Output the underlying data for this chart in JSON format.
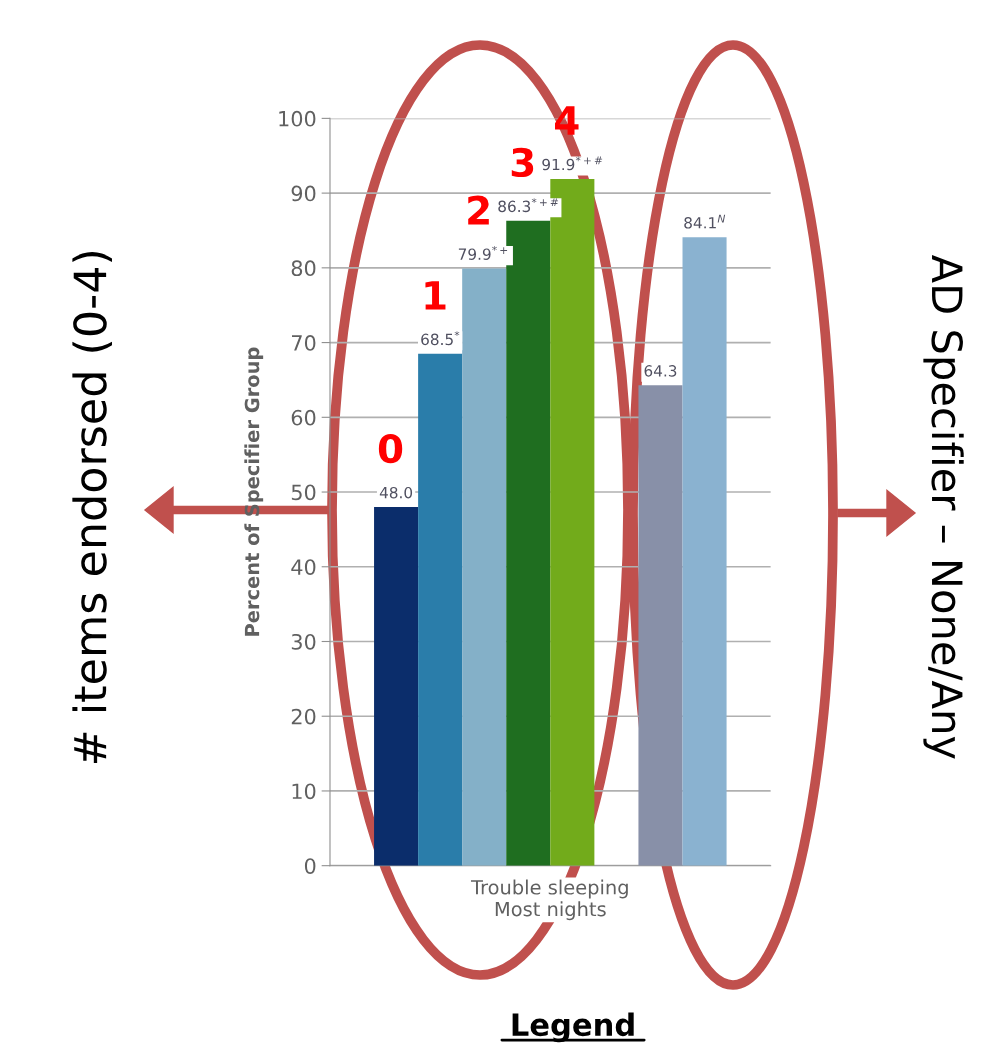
{
  "chart_data": {
    "type": "bar",
    "categories": [
      "Trouble sleeping\nMost nights"
    ],
    "ylabel": "Percent of Specifier Group",
    "ylim": [
      0,
      100
    ],
    "yticks": [
      0,
      10,
      20,
      30,
      40,
      50,
      60,
      70,
      80,
      90,
      100
    ],
    "grid": "y",
    "series": [
      {
        "name": "0",
        "color": "#0b2d6b",
        "values": [
          48.0
        ],
        "value_labels": [
          "48.0"
        ]
      },
      {
        "name": "1",
        "color": "#2a7daa",
        "values": [
          68.5
        ],
        "value_labels": [
          "68.5$^{*}$"
        ]
      },
      {
        "name": "2",
        "color": "#84b0c8",
        "values": [
          79.9
        ],
        "value_labels": [
          "79.9$^{*+}$"
        ]
      },
      {
        "name": "3",
        "color": "#1f6e20",
        "values": [
          86.3
        ],
        "value_labels": [
          "86.3$^{*+#}$"
        ]
      },
      {
        "name": "4",
        "color": "#72ab1b",
        "values": [
          91.9
        ],
        "value_labels": [
          "91.9$^{*+#}$"
        ]
      },
      {
        "color": "#ffffff",
        "values": [
          null
        ],
        "value_labels": [
          null
        ]
      },
      {
        "color": "#8890a8",
        "values": [
          64.3
        ],
        "value_labels": [
          "64.3"
        ]
      },
      {
        "color": "#8ab2d0",
        "values": [
          84.1
        ],
        "value_labels": [
          "84.1$^{N}$"
        ]
      }
    ],
    "annotations": [
      "# items endorsed (0-4)",
      "AD Specifier – None/Any",
      "Legend"
    ]
  }
}
